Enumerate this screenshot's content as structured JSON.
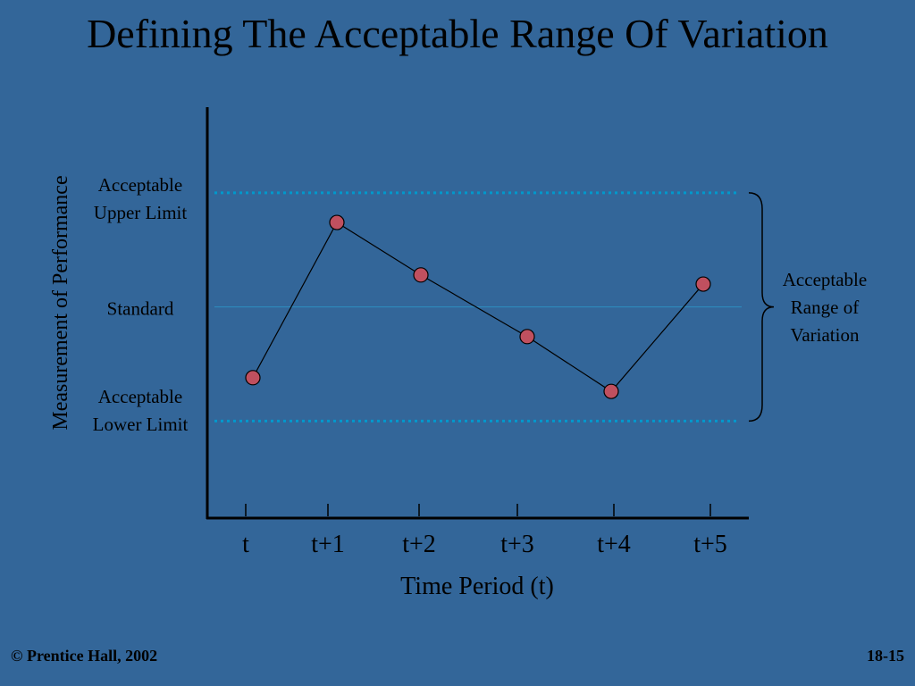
{
  "slide": {
    "title": "Defining The Acceptable Range Of Variation",
    "footer_left": "© Prentice Hall, 2002",
    "footer_right": "18-15"
  },
  "chart_data": {
    "type": "line",
    "title": "Defining The Acceptable Range Of Variation",
    "xlabel": "Time Period (t)",
    "ylabel": "Measurement of Performance",
    "categories": [
      "t",
      "t+1",
      "t+2",
      "t+3",
      "t+4",
      "t+5"
    ],
    "series": [
      {
        "values": [
          -0.62,
          0.74,
          0.28,
          -0.26,
          -0.74,
          0.2
        ]
      }
    ],
    "reference_lines": [
      {
        "label_lines": [
          "Acceptable",
          "Upper Limit"
        ],
        "value": 1,
        "style": "dotted"
      },
      {
        "label_lines": [
          "Standard"
        ],
        "value": 0,
        "style": "solid"
      },
      {
        "label_lines": [
          "Acceptable",
          "Lower Limit"
        ],
        "value": -1,
        "style": "dotted"
      }
    ],
    "range_annotation": {
      "label_lines": [
        "Acceptable",
        "Range of",
        "Variation"
      ],
      "from": -1,
      "to": 1
    },
    "ylim": [
      -1.85,
      1.75
    ],
    "grid": false,
    "legend": "none",
    "colors": {
      "background": "#336699",
      "marker": "#C0505F",
      "limit_line": "#0099CC",
      "standard_line": "#2E8FC0",
      "axis": "#000000"
    }
  }
}
